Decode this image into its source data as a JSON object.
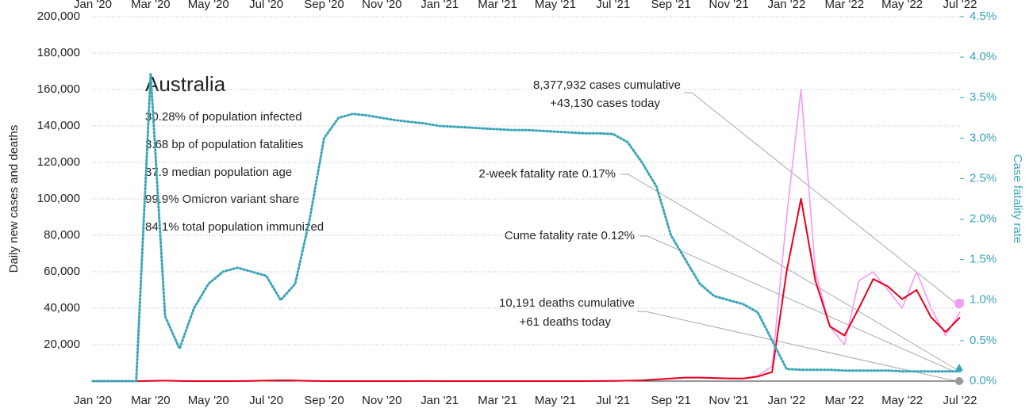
{
  "chart_data": {
    "type": "line",
    "title": "Australia",
    "stats": [
      "30.28% of population infected",
      "3.68 bp of population fatalities",
      "37.9 median population age",
      "99.9% Omicron variant share",
      "84.1% total population immunized"
    ],
    "y_label": "Daily new cases and deaths",
    "y2_label": "Case fatality rate",
    "annotations": [
      "8,377,932 cases cumulative",
      "+43,130 cases today",
      "2-week fatality rate 0.17%",
      "Cume fatality rate 0.12%",
      "10,191 deaths cumulative",
      "+61 deaths today"
    ],
    "categories": [
      "Jan '20",
      null,
      null,
      null,
      "Mar '20",
      null,
      null,
      null,
      "May '20",
      null,
      null,
      null,
      "Jul '20",
      null,
      null,
      null,
      "Sep '20",
      null,
      null,
      null,
      "Nov '20",
      null,
      null,
      null,
      "Jan '21",
      null,
      null,
      null,
      "Mar '21",
      null,
      null,
      null,
      "May '21",
      null,
      null,
      null,
      "Jul '21",
      null,
      null,
      null,
      "Sep '21",
      null,
      null,
      null,
      "Nov '21",
      null,
      null,
      null,
      "Jan '22",
      null,
      null,
      null,
      "Mar '22",
      null,
      null,
      null,
      "May '22",
      null,
      null,
      null,
      "Jul '22"
    ],
    "series": [
      {
        "color": "#f59af5",
        "values": [
          0,
          0,
          0,
          0,
          200,
          300,
          50,
          10,
          10,
          10,
          20,
          100,
          300,
          500,
          300,
          100,
          20,
          10,
          10,
          10,
          10,
          10,
          20,
          30,
          20,
          10,
          10,
          10,
          10,
          10,
          10,
          10,
          10,
          10,
          20,
          50,
          100,
          200,
          500,
          1000,
          1500,
          2000,
          2000,
          1800,
          1500,
          1500,
          3000,
          8000,
          90000,
          160000,
          60000,
          30000,
          20000,
          55000,
          60000,
          50000,
          40000,
          60000,
          40000,
          25000,
          38000
        ]
      },
      {
        "color": "#e8001c",
        "values": [
          0,
          0,
          0,
          0,
          150,
          250,
          60,
          10,
          10,
          10,
          20,
          90,
          280,
          450,
          300,
          100,
          20,
          10,
          10,
          10,
          10,
          10,
          20,
          30,
          20,
          10,
          10,
          10,
          10,
          10,
          10,
          10,
          10,
          10,
          20,
          50,
          100,
          200,
          450,
          900,
          1400,
          1900,
          1900,
          1700,
          1500,
          1400,
          2500,
          5000,
          60000,
          100000,
          55000,
          30000,
          25000,
          40000,
          56000,
          52000,
          45000,
          50000,
          35000,
          27000,
          35000
        ]
      },
      {
        "color": "#3aa5b8",
        "axis": "y2",
        "values": [
          0,
          0,
          0,
          0,
          3.8,
          0.8,
          0.4,
          0.9,
          1.2,
          1.35,
          1.4,
          1.35,
          1.3,
          1.0,
          1.2,
          2.0,
          3.0,
          3.25,
          3.3,
          3.28,
          3.25,
          3.22,
          3.2,
          3.18,
          3.15,
          3.14,
          3.13,
          3.12,
          3.11,
          3.1,
          3.1,
          3.09,
          3.08,
          3.07,
          3.06,
          3.06,
          3.05,
          2.95,
          2.7,
          2.4,
          1.8,
          1.5,
          1.2,
          1.05,
          1.0,
          0.95,
          0.85,
          0.5,
          0.15,
          0.14,
          0.14,
          0.14,
          0.13,
          0.13,
          0.13,
          0.13,
          0.12,
          0.12,
          0.12,
          0.12,
          0.12
        ]
      }
    ],
    "ylim": [
      0,
      200000
    ],
    "yticks": [
      {
        "value": 20000,
        "label": "20,000"
      },
      {
        "value": 40000,
        "label": "40,000"
      },
      {
        "value": 60000,
        "label": "60,000"
      },
      {
        "value": 80000,
        "label": "80,000"
      },
      {
        "value": 100000,
        "label": "100,000"
      },
      {
        "value": 120000,
        "label": "120,000"
      },
      {
        "value": 140000,
        "label": "140,000"
      },
      {
        "value": 160000,
        "label": "160,000"
      },
      {
        "value": 180000,
        "label": "180,000"
      },
      {
        "value": 200000,
        "label": "200,000"
      }
    ],
    "y2lim": [
      0,
      4.5
    ],
    "y2ticks": [
      {
        "value": 0,
        "label": "0.0%"
      },
      {
        "value": 0.5,
        "label": "0.5%"
      },
      {
        "value": 1,
        "label": "1.0%"
      },
      {
        "value": 1.5,
        "label": "1.5%"
      },
      {
        "value": 2,
        "label": "2.0%"
      },
      {
        "value": 2.5,
        "label": "2.5%"
      },
      {
        "value": 3,
        "label": "3.0%"
      },
      {
        "value": 3.5,
        "label": "3.5%"
      },
      {
        "value": 4,
        "label": "4.0%"
      },
      {
        "value": 4.5,
        "label": "4.5%"
      }
    ],
    "grid": true
  }
}
